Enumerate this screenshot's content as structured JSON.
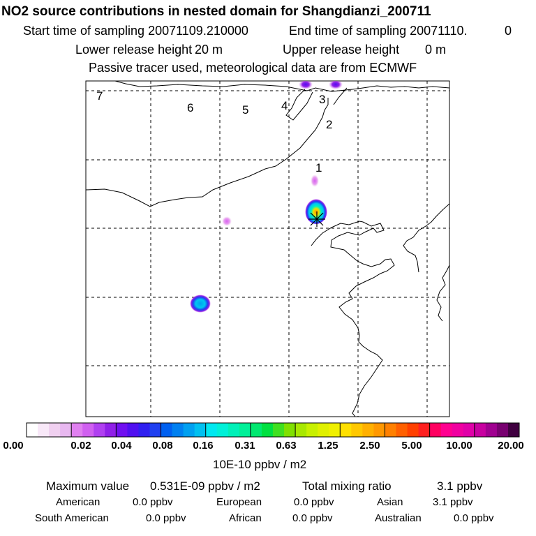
{
  "header": {
    "title": "NO2 source contributions in nested domain for Shangdianzi_200711",
    "start_label": "Start time of sampling 20071109.210000",
    "end_label": "End time of sampling 20071110.",
    "end_value": "0",
    "lower_label": "Lower release height",
    "lower_value": "20 m",
    "upper_label": "Upper release height",
    "upper_value": "0 m",
    "tracer_note": "Passive tracer used, meteorological data are from ECMWF"
  },
  "map": {
    "region_labels": [
      "1",
      "2",
      "3",
      "4",
      "5",
      "6",
      "7"
    ],
    "receptor_symbol": "station-marker"
  },
  "colorbar": {
    "ticks": [
      "0.00",
      "0.02",
      "0.04",
      "0.08",
      "0.16",
      "0.31",
      "0.63",
      "1.25",
      "2.50",
      "5.00",
      "10.00",
      "20.00"
    ],
    "unit": "10E-10 ppbv / m2",
    "colors": [
      [
        "#ffffff",
        "#f8e8f8",
        "#f0d0f0",
        "#e8b8f0"
      ],
      [
        "#e080f0",
        "#d060f0",
        "#b040f0",
        "#9020e8"
      ],
      [
        "#7010f0",
        "#5010f0",
        "#3020f0",
        "#2040f0"
      ],
      [
        "#0060f0",
        "#0080f0",
        "#00a0f0",
        "#00c0f0"
      ],
      [
        "#00e8f0",
        "#00f0d8",
        "#00f0b8",
        "#00f098"
      ],
      [
        "#00e870",
        "#00e040",
        "#40e020",
        "#80e000"
      ],
      [
        "#a8e800",
        "#c8f000",
        "#e0f000",
        "#f0f000"
      ],
      [
        "#ffe000",
        "#ffc800",
        "#ffb000",
        "#ff9800"
      ],
      [
        "#ff8000",
        "#ff6000",
        "#ff4000",
        "#ff2020"
      ],
      [
        "#ff0060",
        "#ff0090",
        "#f000a0",
        "#e000a8"
      ],
      [
        "#c800a0",
        "#a00090",
        "#780070",
        "#400040"
      ]
    ]
  },
  "summary": {
    "max_label": "Maximum value",
    "max_value": "0.531E-09 ppbv / m2",
    "total_label": "Total mixing ratio",
    "total_value": "3.1 ppbv",
    "regions": [
      {
        "name": "American",
        "value": "0.0 ppbv"
      },
      {
        "name": "European",
        "value": "0.0 ppbv"
      },
      {
        "name": "Asian",
        "value": "3.1 ppbv"
      },
      {
        "name": "South American",
        "value": "0.0 ppbv"
      },
      {
        "name": "African",
        "value": "0.0 ppbv"
      },
      {
        "name": "Australian",
        "value": "0.0 ppbv"
      }
    ]
  }
}
